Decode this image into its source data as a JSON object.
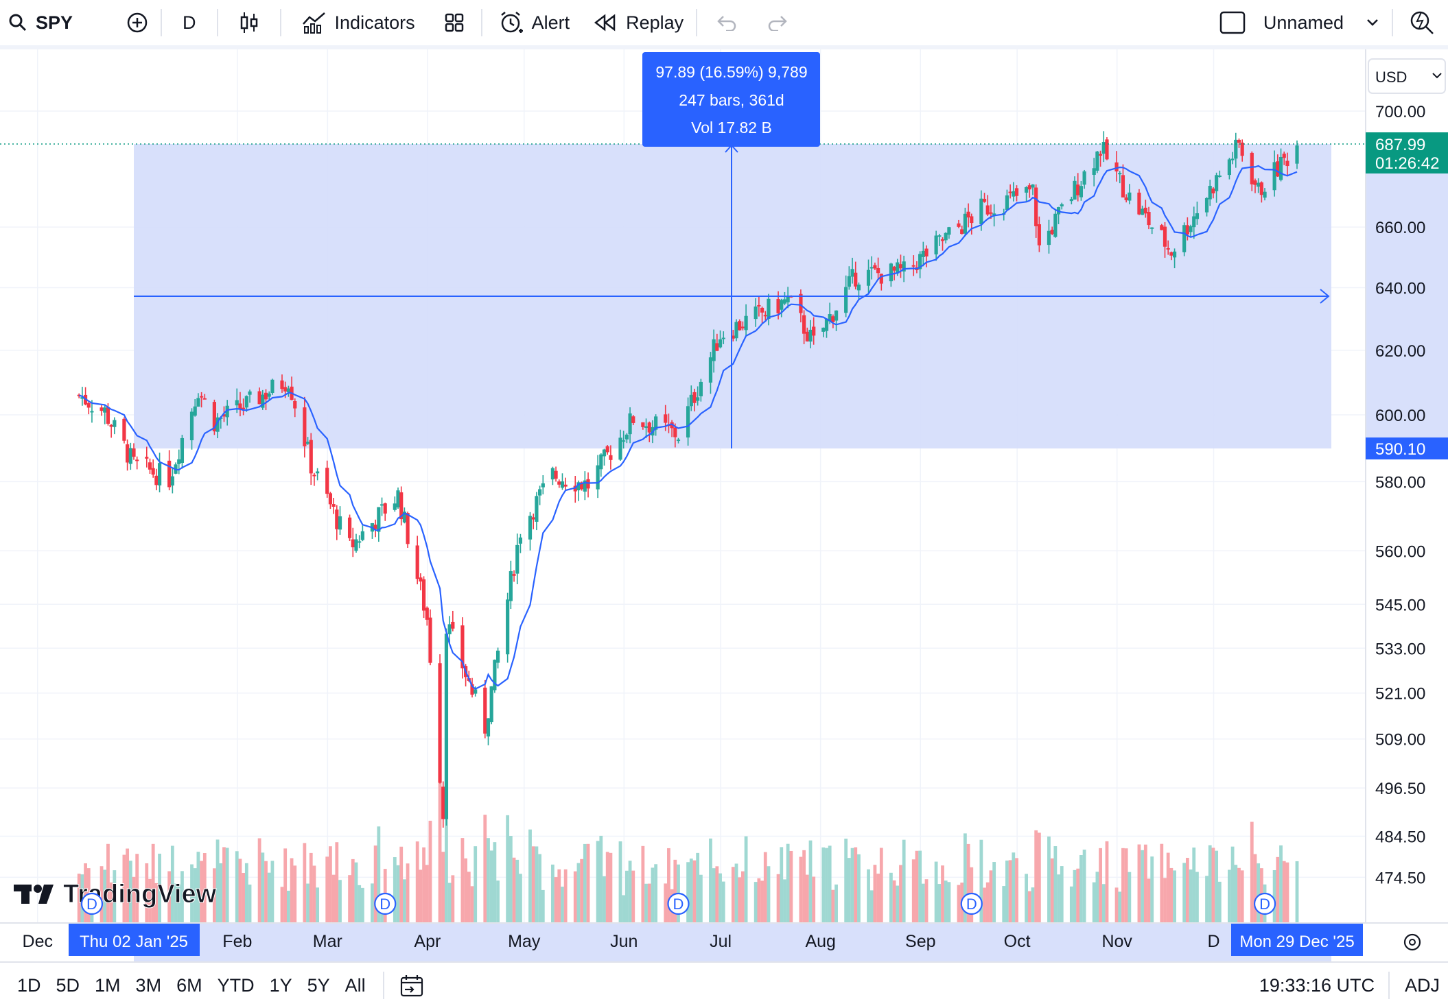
{
  "toolbar": {
    "symbol": "SPY",
    "interval": "D",
    "indicators_label": "Indicators",
    "alert_label": "Alert",
    "replay_label": "Replay",
    "layout_name": "Unnamed",
    "icons": [
      "search-icon",
      "plus-circle-icon",
      "candles-icon",
      "indicators-icon",
      "layouts-icon",
      "alarm-clock-icon",
      "replay-icon",
      "undo-icon",
      "redo-icon",
      "checkbox-icon",
      "chevron-down-icon",
      "quick-search-icon"
    ]
  },
  "measure": {
    "line1": "97.89 (16.59%) 9,789",
    "line2": "247 bars, 361d",
    "line3": "Vol 17.82 B",
    "from_price": 590.1,
    "to_price": 687.99,
    "from_date_label": "Thu 02 Jan '25",
    "to_date_label": "Mon 29 Dec '25"
  },
  "price_axis": {
    "currency": "USD",
    "current_price": "687.99",
    "countdown": "01:26:42",
    "measure_low_label": "590.10"
  },
  "chart_data": {
    "type": "candlestick",
    "title": "",
    "symbol": "SPY",
    "interval": "1D",
    "y_scale": "log",
    "ylim": [
      468,
      718
    ],
    "price_ticks": [
      700,
      660,
      640,
      620,
      600,
      580,
      560,
      545,
      533,
      521,
      509,
      496.5,
      484.5,
      474.5
    ],
    "price_tick_labels": [
      "700.00",
      "660.00",
      "640.00",
      "620.00",
      "600.00",
      "580.00",
      "560.00",
      "545.00",
      "533.00",
      "521.00",
      "509.00",
      "496.50",
      "484.50",
      "474.50"
    ],
    "month_labels": [
      "Dec",
      "Feb",
      "Mar",
      "Apr",
      "May",
      "Jun",
      "Jul",
      "Aug",
      "Sep",
      "Oct",
      "Nov",
      "D"
    ],
    "overlay": "moving average (blue line)",
    "dividend_markers": [
      "D",
      "D",
      "D",
      "D",
      "D"
    ],
    "close_path": [
      {
        "date": "2024-12-16",
        "close": 606
      },
      {
        "date": "2024-12-24",
        "close": 601
      },
      {
        "date": "2025-01-02",
        "close": 585
      },
      {
        "date": "2025-01-13",
        "close": 581
      },
      {
        "date": "2025-01-22",
        "close": 608
      },
      {
        "date": "2025-01-27",
        "close": 598
      },
      {
        "date": "2025-02-06",
        "close": 603
      },
      {
        "date": "2025-02-19",
        "close": 611
      },
      {
        "date": "2025-02-26",
        "close": 585
      },
      {
        "date": "2025-03-10",
        "close": 561
      },
      {
        "date": "2025-03-25",
        "close": 576
      },
      {
        "date": "2025-04-03",
        "close": 541
      },
      {
        "date": "2025-04-08",
        "close": 490
      },
      {
        "date": "2025-04-09",
        "close": 540
      },
      {
        "date": "2025-04-21",
        "close": 512
      },
      {
        "date": "2025-05-02",
        "close": 566
      },
      {
        "date": "2025-05-12",
        "close": 582
      },
      {
        "date": "2025-05-23",
        "close": 579
      },
      {
        "date": "2025-06-06",
        "close": 599
      },
      {
        "date": "2025-06-20",
        "close": 594
      },
      {
        "date": "2025-07-03",
        "close": 625
      },
      {
        "date": "2025-07-24",
        "close": 636
      },
      {
        "date": "2025-08-01",
        "close": 622
      },
      {
        "date": "2025-08-14",
        "close": 644
      },
      {
        "date": "2025-08-29",
        "close": 645
      },
      {
        "date": "2025-09-22",
        "close": 666
      },
      {
        "date": "2025-10-08",
        "close": 672
      },
      {
        "date": "2025-10-10",
        "close": 653
      },
      {
        "date": "2025-10-29",
        "close": 687
      },
      {
        "date": "2025-11-07",
        "close": 670
      },
      {
        "date": "2025-11-20",
        "close": 652
      },
      {
        "date": "2025-12-11",
        "close": 688
      },
      {
        "date": "2025-12-17",
        "close": 672
      },
      {
        "date": "2025-12-29",
        "close": 687.99
      }
    ]
  },
  "bottombar": {
    "ranges": [
      "1D",
      "5D",
      "1M",
      "3M",
      "6M",
      "YTD",
      "1Y",
      "5Y",
      "All"
    ],
    "clock": "19:33:16 UTC",
    "adj": "ADJ"
  },
  "watermark": "TradingView",
  "colors": {
    "up": "#26a69a",
    "down": "#f23645",
    "up_vol": "#9fd8d2",
    "down_vol": "#f7a7ac",
    "ma": "#2962ff",
    "measure_fill": "#d4ddfb",
    "measure_accent": "#2962ff",
    "last_price_bg": "#089981"
  }
}
